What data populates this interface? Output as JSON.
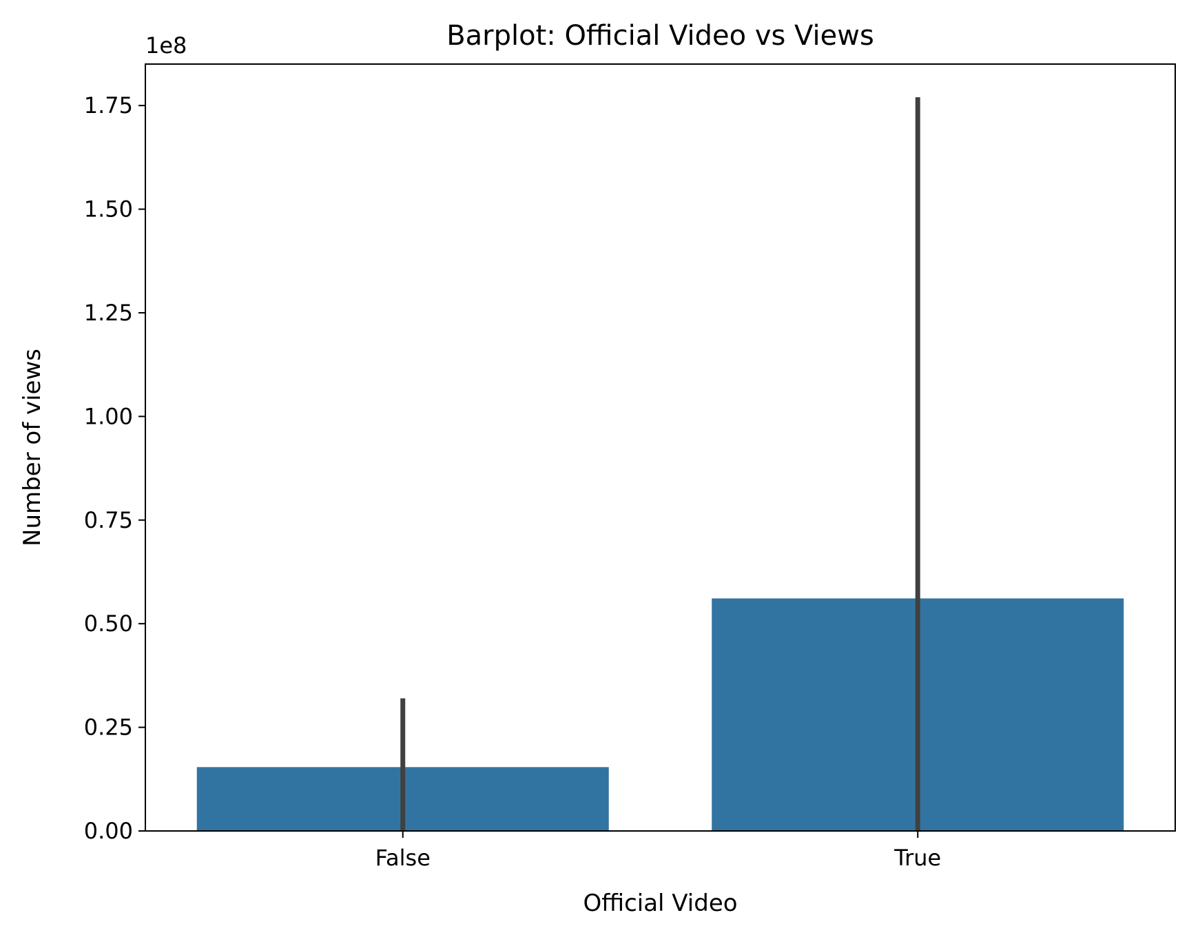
{
  "chart_data": {
    "type": "bar",
    "title": "Barplot: Official Video vs Views",
    "xlabel": "Official Video",
    "ylabel": "Number of views",
    "categories": [
      "False",
      "True"
    ],
    "values": [
      15400000,
      56100000
    ],
    "error_bars": [
      [
        0,
        32000000
      ],
      [
        0,
        177000000
      ]
    ],
    "ylim": [
      0,
      185000000
    ],
    "y_ticks": [
      0,
      25000000,
      50000000,
      75000000,
      100000000,
      125000000,
      150000000,
      175000000
    ],
    "y_tick_labels": [
      "0.00",
      "0.25",
      "0.50",
      "0.75",
      "1.00",
      "1.25",
      "1.50",
      "1.75"
    ],
    "y_offset_label": "1e8",
    "grid": false,
    "bar_color": "#3274a1",
    "error_bar_color": "#404040"
  }
}
